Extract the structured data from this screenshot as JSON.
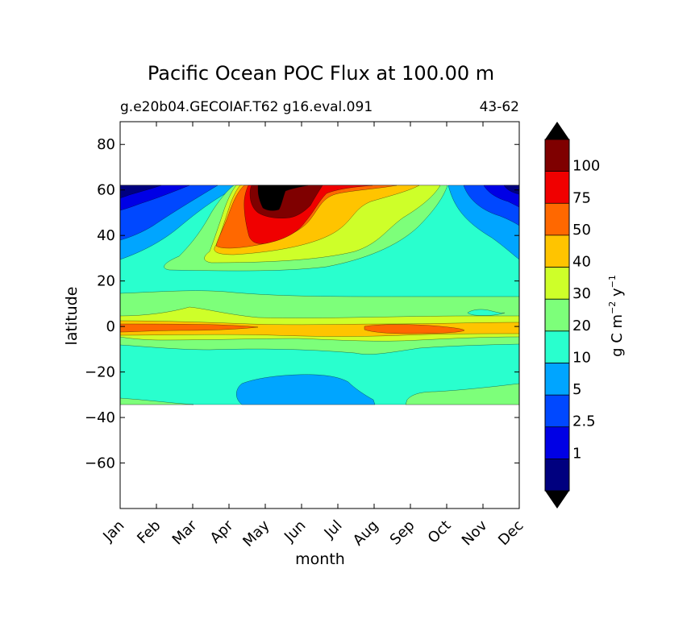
{
  "chart_data": {
    "type": "heatmap",
    "title": "Pacific Ocean POC Flux at 100.00 m",
    "subtitle_left": "g.e20b04.GECOIAF.T62 g16.eval.091",
    "subtitle_right": "43-62",
    "xlabel": "month",
    "ylabel": "latitude",
    "x_ticks": [
      "Jan",
      "Feb",
      "Mar",
      "Apr",
      "May",
      "Jun",
      "Jul",
      "Aug",
      "Sep",
      "Oct",
      "Nov",
      "Dec"
    ],
    "xlim": [
      0,
      11
    ],
    "ylim": [
      -80,
      90
    ],
    "y_ticks": [
      80,
      60,
      40,
      20,
      0,
      -20,
      -40,
      -60
    ],
    "y_tick_labels": [
      "80",
      "60",
      "40",
      "20",
      "0",
      "−20",
      "−40",
      "−60"
    ],
    "data_lat_range": [
      -34,
      63
    ],
    "colorbar": {
      "label": "g C m",
      "label_exp1": "−2",
      "label_mid": " y",
      "label_exp2": "−1",
      "levels": [
        1,
        2.5,
        5,
        10,
        20,
        30,
        40,
        50,
        75,
        100
      ],
      "level_labels": [
        "1",
        "2.5",
        "5",
        "10",
        "20",
        "30",
        "40",
        "50",
        "75",
        "100"
      ],
      "colors": [
        "#00007f",
        "#0000e5",
        "#0048ff",
        "#00a5ff",
        "#29ffce",
        "#7dff7a",
        "#ceff29",
        "#ffc400",
        "#ff6800",
        "#f00000",
        "#7f0000"
      ],
      "under_color": "#000000",
      "over_color": "#000000"
    },
    "contours": [
      {
        "name": "base-10-20",
        "color": "#29ffce"
      },
      {
        "name": "north-5-10",
        "color": "#00a5ff"
      },
      {
        "name": "north-2.5-5",
        "color": "#0048ff"
      },
      {
        "name": "north-1-2.5",
        "color": "#0000e5"
      },
      {
        "name": "north-lt-1",
        "color": "#00007f"
      },
      {
        "name": "north-20-30",
        "color": "#7dff7a"
      },
      {
        "name": "north-30-40",
        "color": "#ceff29"
      },
      {
        "name": "north-40-50",
        "color": "#ffc400"
      },
      {
        "name": "north-50-75",
        "color": "#ff6800"
      },
      {
        "name": "north-75-100",
        "color": "#f00000"
      },
      {
        "name": "north-100-plus",
        "color": "#7f0000"
      },
      {
        "name": "north-over",
        "color": "#000000"
      },
      {
        "name": "equator-20-30",
        "color": "#7dff7a"
      },
      {
        "name": "equator-30-40",
        "color": "#ceff29"
      },
      {
        "name": "equator-40-50",
        "color": "#ffc400"
      },
      {
        "name": "equator-50-75-west",
        "color": "#ff6800"
      },
      {
        "name": "equator-50-75-east",
        "color": "#ff6800"
      },
      {
        "name": "south-5-10",
        "color": "#00a5ff"
      },
      {
        "name": "south-20-30",
        "color": "#7dff7a"
      },
      {
        "name": "south-east-10-20",
        "color": "#29ffce"
      }
    ]
  }
}
